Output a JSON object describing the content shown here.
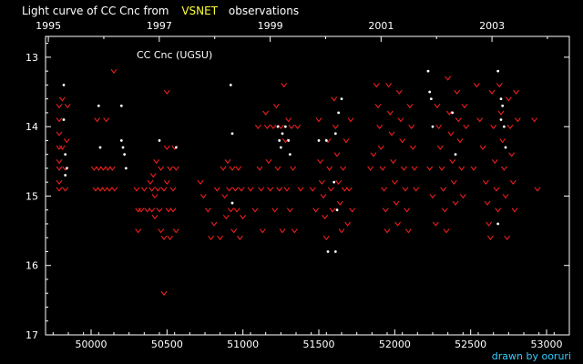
{
  "header": {
    "title_prefix": "Light curve of CC Cnc from",
    "title_source": "VSNET",
    "title_suffix": "observations"
  },
  "credit": "drawn by ooruri",
  "colors": {
    "background": "#000000",
    "text": "#ffffff",
    "highlight": "#ffff33",
    "fainter_than": "#ff2020",
    "positive_obs": "#ffffff",
    "credit": "#33ccff"
  },
  "chart_data": {
    "type": "scatter",
    "title": "Light curve of CC Cnc from VSNET observations",
    "annotation": "CC Cnc (UGSU)",
    "x_axis": {
      "ticks": [
        50000,
        50500,
        51000,
        51500,
        52000,
        52500,
        53000
      ],
      "tick_labels": [
        "50000",
        "50500",
        "51000",
        "51500",
        "52000",
        "52500",
        "53000"
      ],
      "range": [
        49700,
        53150
      ]
    },
    "top_axis": {
      "ticks": [
        1995,
        1997,
        1999,
        2001,
        2003
      ],
      "tick_labels": [
        "1995",
        "1997",
        "1999",
        "2001",
        "2003"
      ]
    },
    "y_axis": {
      "ticks": [
        13,
        14,
        15,
        16,
        17
      ],
      "tick_labels": [
        "13",
        "14",
        "15",
        "16",
        "17"
      ],
      "range": [
        12.7,
        17.0
      ],
      "inverted": true
    },
    "series": [
      {
        "marker": "v",
        "points": [
          [
            49790,
            13.7
          ],
          [
            49790,
            13.9
          ],
          [
            49790,
            14.1
          ],
          [
            49790,
            14.3
          ],
          [
            49790,
            14.5
          ],
          [
            49790,
            14.6
          ],
          [
            49790,
            14.8
          ],
          [
            49790,
            14.9
          ],
          [
            49810,
            13.6
          ],
          [
            49810,
            14.3
          ],
          [
            49830,
            14.6
          ],
          [
            49830,
            14.9
          ],
          [
            49840,
            14.2
          ],
          [
            49845,
            13.7
          ],
          [
            50020,
            14.6
          ],
          [
            50030,
            14.9
          ],
          [
            50040,
            13.9
          ],
          [
            50050,
            14.6
          ],
          [
            50060,
            14.9
          ],
          [
            50080,
            14.6
          ],
          [
            50090,
            14.9
          ],
          [
            50100,
            13.9
          ],
          [
            50110,
            14.6
          ],
          [
            50120,
            14.9
          ],
          [
            50140,
            14.6
          ],
          [
            50150,
            13.2
          ],
          [
            50155,
            14.9
          ],
          [
            50300,
            14.9
          ],
          [
            50310,
            15.2
          ],
          [
            50310,
            15.5
          ],
          [
            50330,
            15.2
          ],
          [
            50350,
            14.9
          ],
          [
            50370,
            15.2
          ],
          [
            50390,
            14.8
          ],
          [
            50400,
            14.9
          ],
          [
            50400,
            15.2
          ],
          [
            50410,
            14.7
          ],
          [
            50420,
            15.0
          ],
          [
            50420,
            15.3
          ],
          [
            50430,
            14.5
          ],
          [
            50440,
            14.9
          ],
          [
            50450,
            15.2
          ],
          [
            50460,
            14.6
          ],
          [
            50460,
            15.5
          ],
          [
            50480,
            14.9
          ],
          [
            50480,
            15.6
          ],
          [
            50500,
            13.5
          ],
          [
            50500,
            14.3
          ],
          [
            50500,
            14.8
          ],
          [
            50510,
            15.2
          ],
          [
            50520,
            14.6
          ],
          [
            50520,
            15.6
          ],
          [
            50540,
            14.9
          ],
          [
            50540,
            15.2
          ],
          [
            50550,
            14.3
          ],
          [
            50560,
            14.6
          ],
          [
            50560,
            15.5
          ],
          [
            50480,
            16.4
          ],
          [
            50720,
            14.8
          ],
          [
            50740,
            15.0
          ],
          [
            50770,
            15.2
          ],
          [
            50790,
            15.6
          ],
          [
            50810,
            15.4
          ],
          [
            50830,
            14.9
          ],
          [
            50850,
            15.6
          ],
          [
            50870,
            14.6
          ],
          [
            50880,
            15.0
          ],
          [
            50890,
            15.3
          ],
          [
            50900,
            14.5
          ],
          [
            50910,
            14.9
          ],
          [
            50920,
            15.2
          ],
          [
            50930,
            14.6
          ],
          [
            50940,
            15.5
          ],
          [
            50950,
            14.9
          ],
          [
            50960,
            15.2
          ],
          [
            50970,
            14.6
          ],
          [
            50980,
            15.6
          ],
          [
            50990,
            14.9
          ],
          [
            51000,
            15.3
          ],
          [
            51050,
            14.9
          ],
          [
            51080,
            15.2
          ],
          [
            51100,
            14.0
          ],
          [
            51110,
            14.6
          ],
          [
            51120,
            14.9
          ],
          [
            51130,
            15.5
          ],
          [
            51150,
            13.8
          ],
          [
            51160,
            14.0
          ],
          [
            51170,
            14.5
          ],
          [
            51180,
            14.9
          ],
          [
            51200,
            14.0
          ],
          [
            51210,
            15.2
          ],
          [
            51220,
            13.7
          ],
          [
            51230,
            14.6
          ],
          [
            51240,
            14.9
          ],
          [
            51250,
            14.0
          ],
          [
            51260,
            15.5
          ],
          [
            51270,
            13.4
          ],
          [
            51280,
            14.2
          ],
          [
            51290,
            14.9
          ],
          [
            51300,
            13.9
          ],
          [
            51310,
            15.2
          ],
          [
            51320,
            14.0
          ],
          [
            51330,
            14.6
          ],
          [
            51340,
            15.5
          ],
          [
            51360,
            14.0
          ],
          [
            51380,
            14.9
          ],
          [
            51460,
            14.9
          ],
          [
            51480,
            15.2
          ],
          [
            51500,
            13.9
          ],
          [
            51510,
            14.5
          ],
          [
            51520,
            14.8
          ],
          [
            51530,
            15.0
          ],
          [
            51540,
            15.3
          ],
          [
            51550,
            15.6
          ],
          [
            51560,
            14.2
          ],
          [
            51570,
            14.6
          ],
          [
            51580,
            14.9
          ],
          [
            51590,
            15.2
          ],
          [
            51600,
            13.6
          ],
          [
            51610,
            14.0
          ],
          [
            51620,
            14.4
          ],
          [
            51630,
            14.8
          ],
          [
            51640,
            15.1
          ],
          [
            51650,
            15.5
          ],
          [
            51660,
            14.6
          ],
          [
            51670,
            14.9
          ],
          [
            51680,
            14.2
          ],
          [
            51690,
            15.4
          ],
          [
            51700,
            14.9
          ],
          [
            51710,
            13.9
          ],
          [
            51720,
            15.2
          ],
          [
            51840,
            14.6
          ],
          [
            51860,
            14.4
          ],
          [
            51880,
            13.4
          ],
          [
            51890,
            13.7
          ],
          [
            51900,
            14.0
          ],
          [
            51910,
            14.3
          ],
          [
            51920,
            14.6
          ],
          [
            51930,
            14.9
          ],
          [
            51940,
            15.2
          ],
          [
            51950,
            15.5
          ],
          [
            51960,
            13.4
          ],
          [
            51970,
            13.8
          ],
          [
            51980,
            14.1
          ],
          [
            51990,
            14.5
          ],
          [
            52000,
            14.8
          ],
          [
            52010,
            15.1
          ],
          [
            52020,
            15.4
          ],
          [
            52030,
            13.5
          ],
          [
            52040,
            13.9
          ],
          [
            52050,
            14.2
          ],
          [
            52060,
            14.6
          ],
          [
            52070,
            14.9
          ],
          [
            52080,
            15.2
          ],
          [
            52090,
            15.5
          ],
          [
            52100,
            13.7
          ],
          [
            52110,
            14.0
          ],
          [
            52120,
            14.3
          ],
          [
            52130,
            14.6
          ],
          [
            52140,
            14.9
          ],
          [
            52230,
            14.6
          ],
          [
            52250,
            15.0
          ],
          [
            52270,
            15.4
          ],
          [
            52280,
            13.7
          ],
          [
            52290,
            14.0
          ],
          [
            52300,
            14.3
          ],
          [
            52310,
            14.6
          ],
          [
            52320,
            14.9
          ],
          [
            52330,
            15.2
          ],
          [
            52340,
            15.5
          ],
          [
            52350,
            13.3
          ],
          [
            52360,
            13.8
          ],
          [
            52370,
            14.1
          ],
          [
            52380,
            14.5
          ],
          [
            52390,
            14.8
          ],
          [
            52400,
            15.1
          ],
          [
            52410,
            13.5
          ],
          [
            52420,
            13.9
          ],
          [
            52430,
            14.2
          ],
          [
            52440,
            14.6
          ],
          [
            52450,
            15.0
          ],
          [
            52460,
            13.7
          ],
          [
            52470,
            14.0
          ],
          [
            52520,
            14.6
          ],
          [
            52540,
            13.4
          ],
          [
            52560,
            13.9
          ],
          [
            52580,
            14.3
          ],
          [
            52600,
            14.8
          ],
          [
            52610,
            15.1
          ],
          [
            52620,
            15.4
          ],
          [
            52630,
            15.6
          ],
          [
            52640,
            13.5
          ],
          [
            52650,
            14.0
          ],
          [
            52660,
            14.5
          ],
          [
            52670,
            14.9
          ],
          [
            52680,
            15.2
          ],
          [
            52690,
            13.4
          ],
          [
            52700,
            13.8
          ],
          [
            52710,
            14.2
          ],
          [
            52720,
            14.6
          ],
          [
            52730,
            15.0
          ],
          [
            52740,
            15.6
          ],
          [
            52750,
            13.6
          ],
          [
            52760,
            14.0
          ],
          [
            52770,
            14.4
          ],
          [
            52780,
            14.8
          ],
          [
            52790,
            15.2
          ],
          [
            52800,
            13.5
          ],
          [
            52810,
            13.9
          ],
          [
            52920,
            13.9
          ],
          [
            52940,
            14.9
          ]
        ]
      },
      {
        "marker": "dot",
        "points": [
          [
            49820,
            13.4
          ],
          [
            49820,
            13.9
          ],
          [
            49830,
            14.4
          ],
          [
            49830,
            14.7
          ],
          [
            49840,
            14.6
          ],
          [
            50050,
            13.7
          ],
          [
            50060,
            14.3
          ],
          [
            50200,
            13.7
          ],
          [
            50200,
            14.2
          ],
          [
            50210,
            14.3
          ],
          [
            50220,
            14.4
          ],
          [
            50230,
            14.6
          ],
          [
            50450,
            14.2
          ],
          [
            50560,
            14.3
          ],
          [
            50920,
            13.4
          ],
          [
            50930,
            14.1
          ],
          [
            50930,
            15.1
          ],
          [
            51230,
            14.0
          ],
          [
            51240,
            14.2
          ],
          [
            51250,
            14.3
          ],
          [
            51260,
            14.1
          ],
          [
            51280,
            14.0
          ],
          [
            51300,
            14.2
          ],
          [
            51310,
            14.4
          ],
          [
            51500,
            14.2
          ],
          [
            51550,
            14.2
          ],
          [
            51600,
            14.8
          ],
          [
            51610,
            14.1
          ],
          [
            51620,
            15.2
          ],
          [
            51630,
            13.8
          ],
          [
            51650,
            13.6
          ],
          [
            51560,
            15.8
          ],
          [
            51610,
            15.8
          ],
          [
            52220,
            13.2
          ],
          [
            52230,
            13.5
          ],
          [
            52240,
            13.6
          ],
          [
            52250,
            14.0
          ],
          [
            52380,
            13.8
          ],
          [
            52400,
            14.4
          ],
          [
            52680,
            13.2
          ],
          [
            52700,
            13.6
          ],
          [
            52700,
            13.9
          ],
          [
            52710,
            13.7
          ],
          [
            52720,
            14.0
          ],
          [
            52730,
            14.3
          ],
          [
            52680,
            15.4
          ]
        ]
      }
    ]
  }
}
